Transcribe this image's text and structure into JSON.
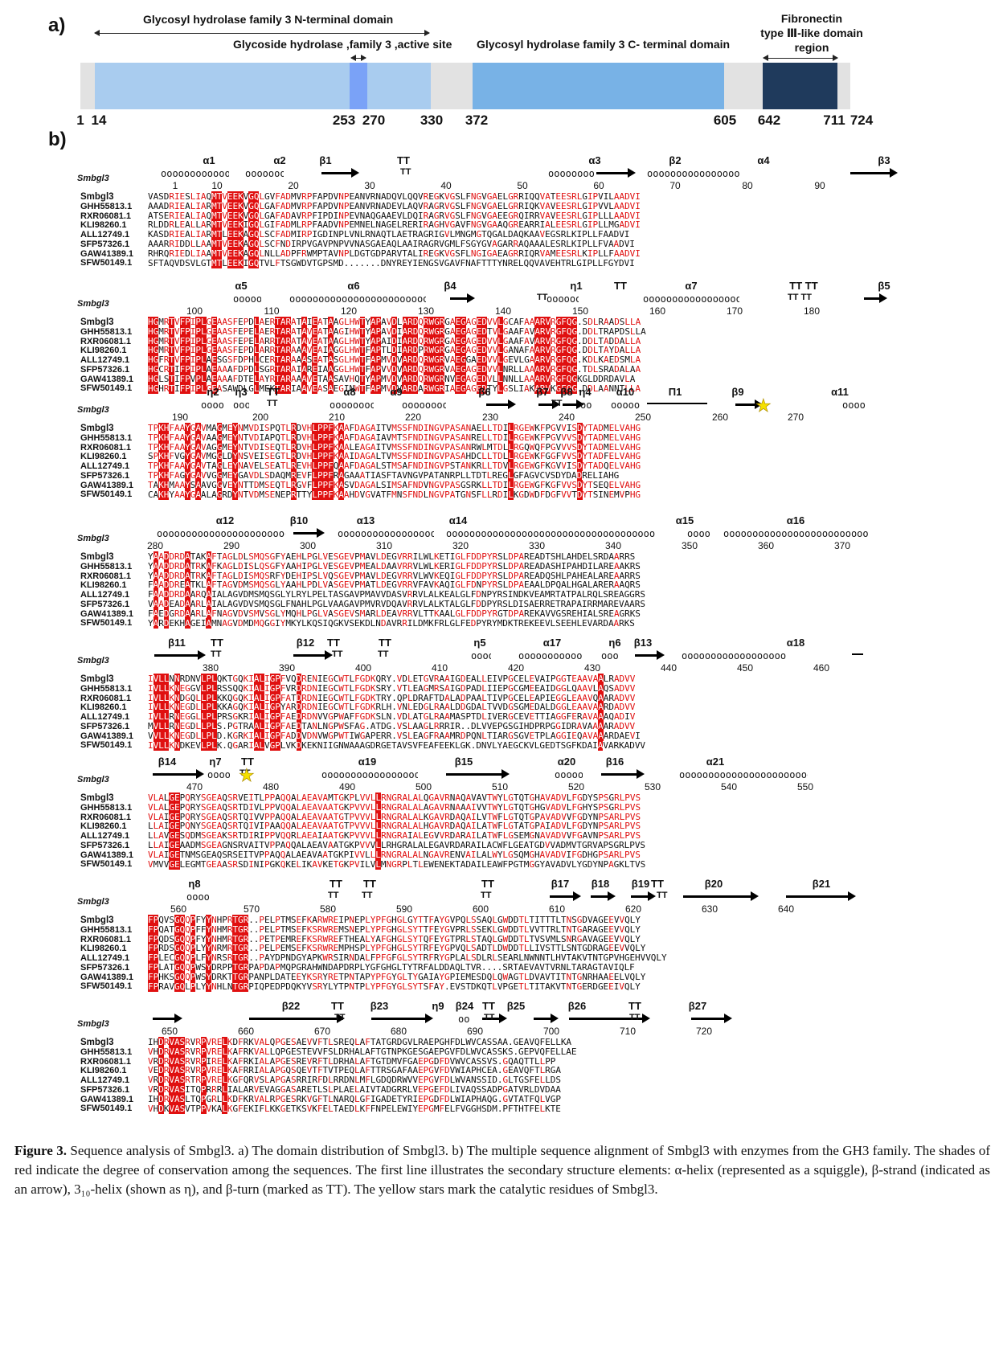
{
  "panel_labels": {
    "a": "a)",
    "b": "b)"
  },
  "domain_map": {
    "titles": {
      "n_terminal": "Glycosyl hydrolase family 3 N-terminal domain",
      "active_site": "Glycoside hydrolase ,family 3 ,active site",
      "c_terminal": "Glycosyl hydrolase family 3 C- terminal domain",
      "fibronectin": "Fibronectin\ntype Ⅲ-like domain\nregion"
    },
    "positions": [
      "1",
      "14",
      "253",
      "270",
      "330",
      "372",
      "605",
      "642",
      "711",
      "724"
    ],
    "colors": {
      "track": "#e2e2e2",
      "n_terminal": "#a9ccef",
      "active_site": "#7aa2f7",
      "c_terminal": "#78b2e6",
      "fibronectin": "#1f3a5c"
    }
  },
  "alignment": {
    "ss_name": "Smbgl3",
    "blocks": [
      {
        "ss_labels": [
          "α1",
          "α2",
          "β1",
          "TT",
          "α3",
          "β2",
          "α4",
          "β3"
        ],
        "numbers": [
          "1",
          "10",
          "20",
          "30",
          "40",
          "50",
          "60",
          "70",
          "80",
          "90"
        ],
        "rows": [
          [
            "Smbgl3",
            "VASDRIESLIAQMTVEEKVGQLGVFADMVRPFAPDVNPEANVRNADQVLQQVREGKVGSLFNGVGAELGRRIQQVATEESRLGIPVILAADVI"
          ],
          [
            "GHH55813.1",
            "AAADRIEALIARMTVEEKVGQLGAFADMVRPFAPDVNPEANVRNADEVLAQVRAGRVGSLFNGVGAELGRRIQKVAVEESRLGIPVVLAADVI"
          ],
          [
            "RXR06081.1",
            "ATSERIEALIAQMTVEEKVGQLGAFADAVRPFIPDINPEVNAQGAAEVLDQIRAGRVGSLFNGVGAEEGRQIRRVAVEESRLGIPLLLAADVI"
          ],
          [
            "KLI98260.1",
            "RLDDRLEALLARMTVEEKIGQLGIFADMLRPFAADVNPEMNELNAGELRERIRAGHVGAVFNGVGAAQGREARRIALEESRLGIPLLMGADVI"
          ],
          [
            "ALL12749.1",
            "KASDRIEALIARMTLEEKAGQLSCFADMIRPIGDINPLVNLRNAQTLAETRAGRIGVLMNGMGTQGALDAQKAAVEGSRLKIPLLFAADVI"
          ],
          [
            "SFP57326.1",
            "AAARRIDDLLAAMTVEEKAGQLSCFNDIRPVGAVPNPVVNASGAEAQLAAIRAGRVGMLFSGYGVAGARRAQAAALESRLKIPLLFVAADVI"
          ],
          [
            "GAW41389.1",
            "RHRQRIEDLIAAMTVEEKAGQLNLLADPFRWMPTAVNPLDGTGDPARVTALIREGKVGSFLNGIGAEAGRRIQRVAMEESRLKIPLLFAADVI"
          ],
          [
            "SFW50149.1",
            "SFTAQVDSVLGTMTLEEKIGQTVLFTSGWDVTGPSMD.......DNYREYIENGSVGAVFNAFTTTYNRELQQVAVEHTRLGIPLLFGYDVI"
          ]
        ]
      },
      {
        "ss_labels": [
          "α5",
          "α6",
          "β4",
          "η1",
          "TT",
          "α7",
          "TT TT",
          "β5"
        ],
        "numbers": [
          "100",
          "110",
          "120",
          "130",
          "140",
          "150",
          "160",
          "170",
          "180"
        ],
        "rows": [
          [
            "Smbgl3",
            "HGMRTVFPIPLGEAASFEPDLAERTARATAIEATAAGLHWTYAPAVDLARDQRWGRGAEGAGEDVVLGCAFAAARVRGFQG.SDLRAADSLLA"
          ],
          [
            "GHH55813.1",
            "HGMRTVFPIPLGEAASFEPELAERTARATAVEATAAGIHWTYAPAVDIARDQRWGRGAEGAGEDTVLGAAFAVARVRGFQG.DDLTRAPDSLLA"
          ],
          [
            "RXR06081.1",
            "HGMRTVFPIPLGEAASFEPELARRTARATAVEATAAGLHWTYAPAIDIARDQRWGRGAEGAGEDVVLGAAFAVARVRGFQG.DDLTADDALLA"
          ],
          [
            "KLI98260.1",
            "HGMRTVFPIPLGEAASFEPDLARRTARAAAVEAIAGGLHWTFAPTLDIARDPRWGRGAEGAGEDVVLGANAFAARVRGFQG.DDLTAYDALLA"
          ],
          [
            "ALL12749.1",
            "HGFRTVFPIPLAESGSFDPHLCERTARAAASEATASGLHWTFAPMVDVARDQRWGRVAEGGAEDVVLGEVLGAARVRGFQG.KDLKAEDSMLA"
          ],
          [
            "SFP57326.1",
            "HGCRTIFPIPLAEAAAFDPDLSGRTARAIAREIAAGGLHWTFAPVVDVARDQRWGRVAEGAGEDVVLNRLLAAARVRGFQG.TDLSRADALAA"
          ],
          [
            "GAW41389.1",
            "HGLSTIFPVPLAEAAAFDTELAYRTARAAAVETAASAVHQTYAPMVDVARDQRWGRNVEGAGEDVLLNNLLAAARVRGFQGKGLDDRDAVLA"
          ],
          [
            "SFW50149.1",
            "HGHRTIFPIPLGEASAWDLGLMEKTARIAAVEASAEGINWTFAPMVDVARDARWGRIAEGAGEDTYLGSLIAKARVKGFQG.DDLAANNTLLA"
          ]
        ]
      },
      {
        "ss_labels": [
          "η2",
          "η3",
          "TT",
          "α8",
          "α9",
          "β6",
          "β7",
          "β8",
          "η4",
          "α10",
          "Π1",
          "β9",
          "α11"
        ],
        "numbers": [
          "190",
          "200",
          "210",
          "220",
          "230",
          "240",
          "250",
          "260",
          "270"
        ],
        "rows": [
          [
            "Smbgl3",
            "TPKHFAAYGAVMAGMEYNMVDISPQTLRDVHLPPFKAAFDAGAITVMSSFNDINGVPASANAELLTDILRGEWKFPGVVISDYTADMELVAHG"
          ],
          [
            "GHH55813.1",
            "TPKHFAAYGAVAAGMEYNTVDIAPQTLRDVHLPPFKAAFDAGAIAVMTSFNDINGVPASANRELLTDILRGEWKFPGVVVSDYTADMELVAHG"
          ],
          [
            "RXR06081.1",
            "TPKHFAAYGAVAGGMEYNTVDISEQTLRDVHLPPFKAALEAGAITVMSSFNDINGVPASANRWLMTDLLRGQWQFPGVVVSDYTADMELVAHG"
          ],
          [
            "KLI98260.1",
            "SPKHFVGYGAVMGGLDYNSVEISEGTLRDVHLPPFKAAIDAGALTVMSSFNDINGVPASAHDCLLTDLLRGEWKFGGFVVSDYTADFELVAHG"
          ],
          [
            "ALL12749.1",
            "TPKHFAAYGAVTAGLEYNAVELSEATLREVHLPPFQAAFDAGALSTMSAFNDINGVPSTANKRLLTDVLRGEWGFKGVVISDYTADQELVAHG"
          ],
          [
            "SFP57326.1",
            "TPKHFAGYGAVVGGMEYGAVDLSDAQMREVFLPPFRAGAAATIASFTAVNGVPATANRPLLTDTLREGLGFAGVCVSDYDADRELIAHG"
          ],
          [
            "GAW41389.1",
            "TAKHMAAYSAAVGGVEYNTTDMSEQTLRGVFLPPFKASVDAGALSIMSAFNDVNGVPASGSRKLLTDILRGEWGFKGFVVSDYTSEQELVAHG"
          ],
          [
            "SFW50149.1",
            "CAKHYAAYGAALAGRDYNTVDMSENEPRTTYLPPFKAAHDVGVATFMNSFNDLNGVPATGNSFLLRDILKGDWDFDGFVVTDYTSINEMVPHG"
          ]
        ]
      },
      {
        "ss_labels": [
          "α12",
          "β10",
          "α13",
          "α14",
          "α15",
          "α16"
        ],
        "numbers": [
          "280",
          "290",
          "300",
          "310",
          "320",
          "330",
          "340",
          "350",
          "360",
          "370"
        ],
        "rows": [
          [
            "Smbgl3",
            "YAADDRDATAKAFTAGLDLSMQSGFYAEHLPGLVESGEVPMAVLDEGVRRILWLKETIGLFDDPYRSLDPAREADTSHLAHDELSRDAARRS"
          ],
          [
            "GHH55813.1",
            "YAADDRDATRKAFKAGLDISLQSGFYAAHIPGLVESGEVPMEALDAAVRRVLWLKERIGLFDDPYRSLDPAREADASHIPAHDILAREAAKRS"
          ],
          [
            "RXR06081.1",
            "YAADDRDATRKAFTAGLDISMQSRFYDEHIPSLVQSGEVPMAVLDEGVRRVLWVKEQIGLFDDPYRSLDPAREADQSHLPAHEALAREAARRS"
          ],
          [
            "KLI98260.1",
            "FAADDREATKLAFTAGVDMSMQSGLYAAHLPDLVASGEVPMATLDEGVRRVFAVKAQIGLFDNPYRSLDPAEAALDPQALHGALARERAAQRS"
          ],
          [
            "ALL12749.1",
            "FAADDRDAARQAIALAGVDMSMQSGLYLRYLPELTASGAVPMAVVDASVRRVLALKEALGLFDNPYRSINDKVEAMRTATPALRQLSREAGGRS"
          ],
          [
            "SFP57326.1",
            "VAADEADAARLAIALAGVDVSMQSGLFNAHLPGLVAAGAVPMVRVDQAVRRVLALKTALGLFDDPYRSLDISAERRETRAPAIRRMAREVAARS"
          ],
          [
            "GAW41389.1",
            "FAEDGRDAARLAFNAGVDVSMVSGLYMQHLPGLVASGEVSMARLDEAVRRVLTTKAALGLFDDPYRGTDPAREKAVVGSREHIALSREAGRKS"
          ],
          [
            "SFW50149.1",
            "YARDEKHAGEIAMNAGVDMDMQGGIYMKYLKQSIQGKVSEKDLNDAVRRILDMKFRLGLFEDPYRYMDKTREKEEVLSEEHLEVARDAARKS"
          ]
        ]
      },
      {
        "ss_labels": [
          "β11",
          "TT",
          "β12",
          "TT",
          "TT",
          "η5",
          "α17",
          "η6",
          "β13",
          "α18"
        ],
        "numbers": [
          "380",
          "390",
          "400",
          "410",
          "420",
          "430",
          "440",
          "450",
          "460"
        ],
        "rows": [
          [
            "Smbgl3",
            "IVLLNNRDNVLPLQKTGQKIALIGPFVQDRENIEGCWTLFGDKQRY.VDLETGVRAAIGDEALLEIVPGCELEVAIPGGTEAAVAALRADVV"
          ],
          [
            "GHH55813.1",
            "IVLLKNEGGVLPLRSSQQKIALIGPFVRDRDNIEGCWTLFGDKSRY.VTLEAGMRSAIGDPADLIIEPGCGMEEAIDGGLQAAVLAQSADVV"
          ],
          [
            "RXR06081.1",
            "IVLLKNDGQLLPLKKQGQKIALIGPFATDRDNIEGCWTLFGDKTRY.QPLDRAFTDALADPAALTIVPGCELEAPIEGGLEAAVQAARADVV"
          ],
          [
            "KLI98260.1",
            "IVLLKNEGDLLPLKKAGQKIALIGPYARDRDNIEGCWTLFGDKRLH.VNLEDGLRAALDDGDALTVVDGSGMEDALDGGLEAAVAARDADVV"
          ],
          [
            "ALL12749.1",
            "IVLLRNEGGLLPLPRSGKRIALIGPFAEDRDNVVGPWAFFGDKSLN.VDLATGLRAAMASPTDLIVERGCEVETTIAGGFERAVAAAQADIV"
          ],
          [
            "SFP57326.1",
            "MVLLRNEGDLLPLS.PGTRAALIGPFAEDTANLNGPWSFAG.ATDG.VSLAAGLRRRIR..DLVVEPGSGIHDPRPGGIDRAVAAAARADVV"
          ],
          [
            "GAW41389.1",
            "VVLLKNEGDLLPLD.KGRKIALIGPFADDVDNVWGPWTIWGAPERR.VSLEAGFRAAMRDPQNLTIARGSGVETPLAGGIEQAVAAARDAEVI"
          ],
          [
            "SFW50149.1",
            "IVLLKNDKEVLPLK.QGARIALVGPLVKDKEKNIIGNWAAAGDRGETAVSVFEAFEEKLGK.DNVLYAEGCKVLGEDTSGFKDAIAVARKADVV"
          ]
        ]
      },
      {
        "ss_labels": [
          "β14",
          "η7",
          "TT",
          "α19",
          "β15",
          "α20",
          "β16",
          "α21"
        ],
        "numbers": [
          "470",
          "480",
          "490",
          "500",
          "510",
          "520",
          "530",
          "540",
          "550"
        ],
        "rows": [
          [
            "Smbgl3",
            "VLALGEPQRYSGEAQSRVEITLPPAQQALAEAVAMTGKPLVVLLRNGRALALQGAVRNAQAVAVTWYLGTQTGHAVADVLFGDYSPSGRLPVS"
          ],
          [
            "GHH55813.1",
            "VLALGEPQRYSGEAQSRTDIVLPPVQQALAEAVAATGKPVVVLLRNGRALALAGAVRNAAAIVVTWYLGTQTGHGVADVLFGHYSPSGRLPVS"
          ],
          [
            "RXR06081.1",
            "VLAIGEPQRYSGEAQSRTQIVVPPAQQALAEAVAATGTPVVVLLRNGRALALKGAVRDAQAILVTWFLGTQTGPAVADVVFGDYNPSARLPVS"
          ],
          [
            "KLI98260.1",
            "LLAIGEPQNYSGEAQSRTQIVIPAAQQALAEAVAATGTPVVVLLRNGRALALHGAVRDAQAILATWFLGTATGPAIADVLFGDYNPSARLPVS"
          ],
          [
            "ALL12749.1",
            "LLAVGESQDMSGEAKSRTDIRIPPVQQRLAEAIAATGKPVVVLLRNGRAIALEGVVRDARAILATWFLGSEMGNAVADVVFGAVNPSARLPVS"
          ],
          [
            "SFP57326.1",
            "LLAIGEAADMSGEAGNSRVAITVPPAQQALAEAVAATGKPVVVLLRHGRALALEGAVRDARAILACWFLGEATGDVVADMVTGRVAPSGRLPVS"
          ],
          [
            "GAW41389.1",
            "VLAIGETNMSGEAQSRSEITVPPAQQALAEAVAATGKPIVVLLLRNGRALALNGAVRENVAILALWYLGSQMGHAVADVIFGDHGPSARLPVS"
          ],
          [
            "SFW50149.1",
            "VMVVGELEGMTGEAASRSDINIPGKQKELIKAVKETGKPVILVLMNGRPLTLEWENEKTADAILEAWFPGTMGGYAVADVLYGDYNPAGKLTVS"
          ]
        ]
      },
      {
        "ss_labels": [
          "η8",
          "TT",
          "TT",
          "TT",
          "β17",
          "β18",
          "β19",
          "TT",
          "β20",
          "β21"
        ],
        "numbers": [
          "560",
          "570",
          "580",
          "590",
          "600",
          "610",
          "620",
          "630",
          "640"
        ],
        "rows": [
          [
            "Smbgl3",
            "FPQVSGQQPFYYNHPRTGR..PELPTMSEFKARWREIPNEPLYPFGHGLGYTTFAYGVPQLSSAQLGWDDTLTITTTLTNSGDVAGEEVVQLY"
          ],
          [
            "GHH55813.1",
            "FPQATGQQPFFYNHMRTGR..PELPTMSEFKSRWREMSNEPLYPFGHGLSYTTFEYGVPRLSSEKLGWDDTLVVTTRLTNTGARAGEEVVQLY"
          ],
          [
            "RXR06081.1",
            "FPQDSGQQPFYYNHMRTGR..PETPEMREFKSRWREFTHEALYAFGHGLSYTQFEYGTPRLSTAQLGWDDTLTVSVMLSNRGAVAGEEVVQLY"
          ],
          [
            "KLI98260.1",
            "FPRDSGQQPLYYNRMRTGR..PELPEMSEFKSRWREMPHSPLYPFGHGLSYTRFEYGPVQLSADTLDWDDTLLIVSTTLSNTGDRAGEEVVQLY"
          ],
          [
            "ALL12749.1",
            "FPLECGQQPLFYNRSRTGR..PAYDPNDGYAPKWRSIRNDALFPFGFGLSYTRFRYGPLALSDLRLSEARLNWNNTLHVTAKVTNTGPVHGEHVVQLY"
          ],
          [
            "SFP57326.1",
            "FPLATGQQPWSYDRPPTGRPAPDAPMQPGRAHWNDAPDRPLYGFGHGLTYTRFALDDAQLTVR....SRTAEVAVTVRNLTARAGTAVIQLF"
          ],
          [
            "GAW41389.1",
            "FPHKSGQQPWSYDRKTTGRPANPLDATEEYKSRYRETPNTAPYPFGYGLTYGAIAYGPIEMESDQLQWAGTLDVAVTITNTGNRHAAEELVQLY"
          ],
          [
            "SFW50149.1",
            "FPRAVGQLPLYYNHLNTGRPIQPEDPDQKYVSRYLYTPNTPLYPFGYGLSYTSFAY.EVSTDKQTLVPGETLTITAKVTNTGERDGEEIVQLY"
          ]
        ]
      },
      {
        "ss_labels": [
          "β22",
          "TT",
          "β23",
          "η9",
          "β24",
          "TT",
          "β25",
          "β26",
          "TT",
          "β27"
        ],
        "numbers": [
          "650",
          "660",
          "670",
          "680",
          "690",
          "700",
          "710",
          "720"
        ],
        "rows": [
          [
            "Smbgl3",
            "IHDRVASRVRPVRELKDFRKVALQPGESAEVVFTLSREQLAFTATGRDGVLRAEPGHFDLWVCASSAA.GEAVQFELLKA"
          ],
          [
            "GHH55813.1",
            "VHDRVASRVRPVRELKAFRKVALLQPGESTEVVFSLDRHALAFTGTNPKGESGAEPGVFDLWVCASSKS.GEPVQFELLAE"
          ],
          [
            "RXR06081.1",
            "VRDRVASRVRPIRELKAFRKIALAPGESREVRFTLDRHALAFTGTDMVFGAEPGDFDVWVCASSVS.GQAQTTLLPP"
          ],
          [
            "KLI98260.1",
            "VEDRVASRVRPVRELKAFRRIALAPGQSQEVTFTVTPEQLAFTTRSGAFAAEPGVFDVWIAPHCEA.GEAVQFTLRGA"
          ],
          [
            "ALL12749.1",
            "VRDRVASRTRPVRELKGFQRVSLAPGASRRIRFDLRRDNLMFLGDQDRWVVEPGVFDLWVANSSID.GLTGSFELLDS"
          ],
          [
            "SFP57326.1",
            "VRDRVASITQPRRRLIALARVEVAGGASARETLSLPLAELAIVTADGRRLVEPGEFDLIVAQSSADPGATVRLDVDAA"
          ],
          [
            "GAW41389.1",
            "IHDRVASLTQPGRLLKDFKRVALRPGESRKVGFTLNARQLGFIGADETYRIEPGDFDLWIAPHAQG.GVTATFQLVGP"
          ],
          [
            "SFW50149.1",
            "VHDKVASVTPPVKALKGFEKIFLKKGETKSVKFELTAEDLKFFNPELEWIYEPGMFELFVGGHSDM.PFTHTFELKTE"
          ]
        ]
      }
    ]
  },
  "caption": {
    "label": "Figure 3.",
    "text": "Sequence analysis of Smbgl3. a) The domain distribution of Smbgl3. b) The multiple sequence alignment of Smbgl3 with enzymes from the GH3 family. The shades of red indicate the degree of conservation among the sequences. The first line illustrates the secondary structure elements: α-helix (represented as a squiggle), β-strand (indicated as an arrow), 3₁₀-helix (shown as η), and β-turn (marked as TT). The yellow stars mark the catalytic residues of Smbgl3."
  }
}
